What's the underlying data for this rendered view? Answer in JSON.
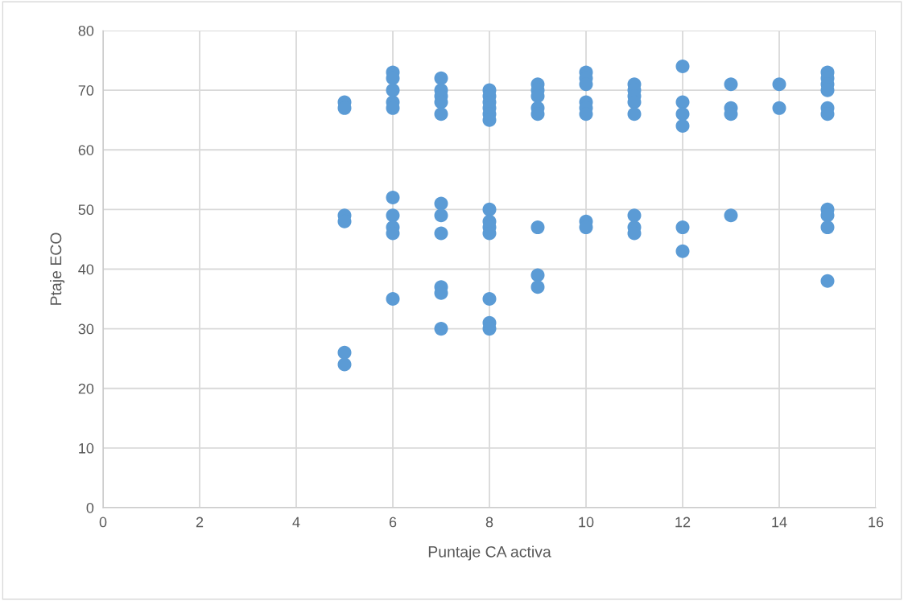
{
  "chart_data": {
    "type": "scatter",
    "xlabel": "Puntaje CA activa",
    "ylabel": "Ptaje ECO",
    "x": [
      5,
      5,
      5,
      5,
      5,
      5,
      6,
      6,
      6,
      6,
      6,
      6,
      6,
      6,
      6,
      6,
      7,
      7,
      7,
      7,
      7,
      7,
      7,
      7,
      7,
      7,
      7,
      8,
      8,
      8,
      8,
      8,
      8,
      8,
      8,
      8,
      8,
      8,
      8,
      8,
      9,
      9,
      9,
      9,
      9,
      9,
      9,
      9,
      10,
      10,
      10,
      10,
      10,
      10,
      10,
      10,
      11,
      11,
      11,
      11,
      11,
      11,
      11,
      11,
      12,
      12,
      12,
      12,
      12,
      12,
      13,
      13,
      13,
      13,
      14,
      14,
      15,
      15,
      15,
      15,
      15,
      15,
      15,
      15,
      15,
      15
    ],
    "values": [
      68,
      67,
      49,
      48,
      26,
      24,
      73,
      72,
      70,
      68,
      67,
      52,
      49,
      47,
      46,
      35,
      72,
      70,
      69,
      68,
      66,
      51,
      49,
      46,
      37,
      36,
      30,
      70,
      69,
      68,
      67,
      66,
      65,
      50,
      48,
      47,
      46,
      35,
      31,
      30,
      71,
      70,
      69,
      67,
      66,
      47,
      39,
      37,
      73,
      72,
      71,
      68,
      67,
      66,
      48,
      47,
      71,
      70,
      69,
      68,
      66,
      49,
      47,
      46,
      74,
      68,
      66,
      64,
      47,
      43,
      71,
      67,
      66,
      49,
      71,
      67,
      73,
      72,
      71,
      70,
      67,
      66,
      50,
      49,
      47,
      38
    ],
    "color": "#5b9bd5",
    "marker": "circle",
    "xlim": [
      0,
      16
    ],
    "xticks": [
      0,
      2,
      4,
      6,
      8,
      10,
      12,
      14,
      16
    ],
    "ylim": [
      0,
      80
    ],
    "yticks": [
      0,
      10,
      20,
      30,
      40,
      50,
      60,
      70,
      80
    ],
    "grid": true
  }
}
